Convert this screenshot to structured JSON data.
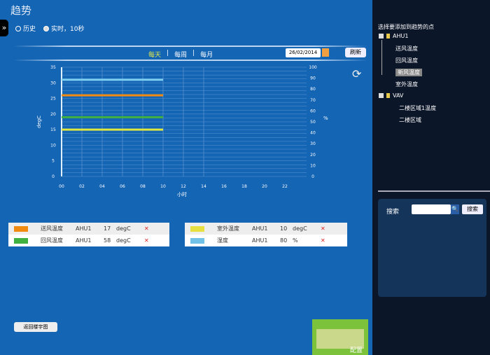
{
  "title": "趋势",
  "mode": {
    "options": [
      "历史",
      "实时，10秒"
    ],
    "selected": 1
  },
  "tabs": [
    {
      "label": "每天",
      "active": true
    },
    {
      "label": "每周"
    },
    {
      "label": "每月"
    }
  ],
  "date": "26/02/2014",
  "refresh_label": "刷新",
  "chart_data": {
    "type": "line",
    "xlabel": "小时",
    "ylabel": "degC",
    "y2label": "%",
    "x_ticks": [
      "00",
      "02",
      "04",
      "06",
      "08",
      "10",
      "12",
      "14",
      "16",
      "18",
      "20",
      "22"
    ],
    "y_ticks": [
      0,
      5,
      10,
      15,
      20,
      25,
      30,
      35
    ],
    "ylim": [
      0,
      35
    ],
    "y2_ticks": [
      0,
      10,
      20,
      30,
      40,
      50,
      60,
      70,
      80,
      90,
      100
    ],
    "y2lim": [
      0,
      100
    ],
    "grid": true,
    "series": [
      {
        "name": "湿度",
        "color": "#7fd0f0",
        "x": [
          "00",
          "10"
        ],
        "values": [
          31,
          31
        ]
      },
      {
        "name": "送风温度",
        "color": "#f08a10",
        "x": [
          "00",
          "10"
        ],
        "values": [
          26,
          26
        ]
      },
      {
        "name": "回风温度",
        "color": "#40b040",
        "x": [
          "00",
          "10"
        ],
        "values": [
          19,
          19
        ]
      },
      {
        "name": "室外温度",
        "color": "#e0e840",
        "x": [
          "00",
          "10"
        ],
        "values": [
          15,
          15
        ]
      }
    ]
  },
  "legend": [
    [
      {
        "name": "送风温度",
        "device": "AHU1",
        "value": "17",
        "unit": "degC",
        "color": "#f08a10"
      },
      {
        "name": "回风温度",
        "device": "AHU1",
        "value": "58",
        "unit": "degC",
        "color": "#40b040"
      }
    ],
    [
      {
        "name": "室外温度",
        "device": "AHU1",
        "value": "10",
        "unit": "degC",
        "color": "#e8e040"
      },
      {
        "name": "湿度",
        "device": "AHU1",
        "value": "80",
        "unit": "%",
        "color": "#70c0e8"
      }
    ]
  ],
  "back_label": "返回楼宇图",
  "config_label": "配置",
  "sidebar": {
    "title": "选择要添加到趋势的点",
    "groups": [
      {
        "label": "AHU1",
        "items": [
          "送风温度",
          "回风温度",
          "新风温度",
          "室外温度"
        ],
        "selected": 2
      },
      {
        "label": "VAV",
        "items": [
          "二楼区域1温度",
          "二楼区域"
        ]
      }
    ],
    "search_label": "搜索",
    "search_button": "搜索",
    "search_value": ""
  }
}
